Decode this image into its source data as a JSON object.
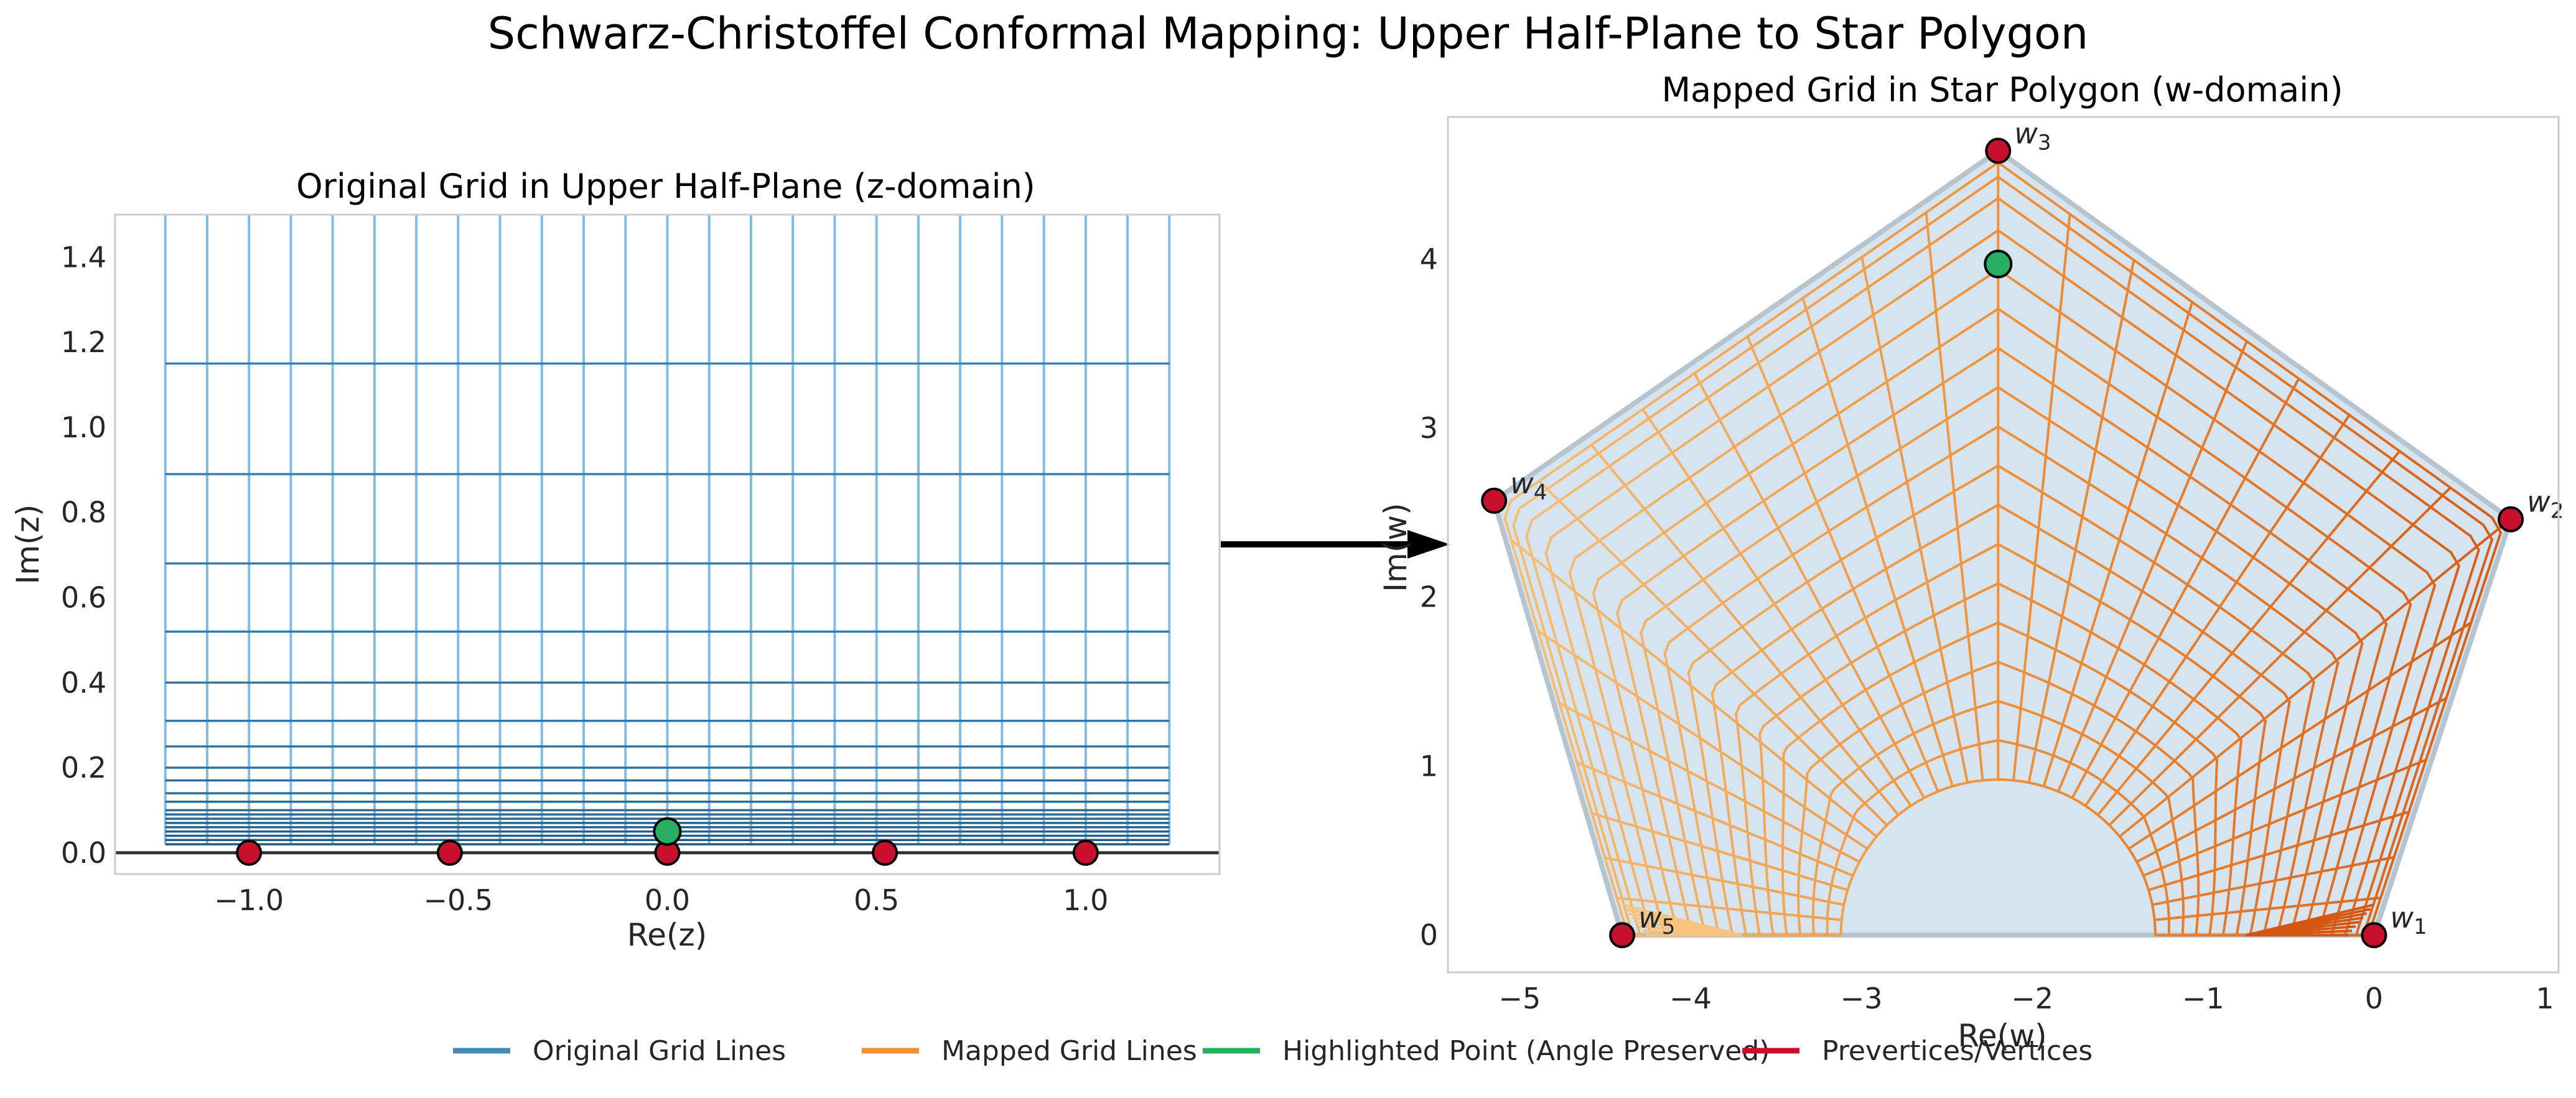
{
  "title": "Schwarz-Christoffel Conformal Mapping: Upper Half-Plane to Star Polygon",
  "colors": {
    "original": "#2c6f9e",
    "original_light": "#7fbce8",
    "mapped": "#f0913a",
    "mapped_light": "#f7c47e",
    "mapped_dark": "#d4560f",
    "highlight": "#27ae60",
    "vertex": "#c8102e",
    "polygon_fill": "#d6e4ef",
    "polygon_edge": "#b6c4d0",
    "arrow": "#000000"
  },
  "legend": [
    {
      "label": "Original Grid Lines",
      "color": "#4a89b3"
    },
    {
      "label": "Mapped Grid Lines",
      "color": "#f0913a"
    },
    {
      "label": "Highlighted Point (Angle Preserved)",
      "color": "#27ae60"
    },
    {
      "label": "Prevertices/Vertices",
      "color": "#c8102e"
    }
  ],
  "chart_data": [
    {
      "type": "line",
      "title": "Original Grid in Upper Half-Plane (z-domain)",
      "xlabel": "Re(z)",
      "ylabel": "Im(z)",
      "xlim": [
        -1.32,
        1.32
      ],
      "ylim": [
        -0.05,
        1.5
      ],
      "xticks": [
        "−1.0",
        "−0.5",
        "0.0",
        "0.5",
        "1.0"
      ],
      "xtick_values": [
        -1.0,
        -0.5,
        0.0,
        0.5,
        1.0
      ],
      "yticks": [
        "0.0",
        "0.2",
        "0.4",
        "0.6",
        "0.8",
        "1.0",
        "1.2",
        "1.4"
      ],
      "ytick_values": [
        0.0,
        0.2,
        0.4,
        0.6,
        0.8,
        1.0,
        1.2,
        1.4
      ],
      "grid": false,
      "vertical_lines_x_range": [
        -1.2,
        1.2
      ],
      "vertical_lines_count": 25,
      "vertical_lines_y_range": [
        0.02,
        1.5
      ],
      "horizontal_lines_y": [
        0.02,
        0.03,
        0.04,
        0.05,
        0.06,
        0.07,
        0.08,
        0.09,
        0.1,
        0.12,
        0.14,
        0.17,
        0.2,
        0.25,
        0.31,
        0.4,
        0.52,
        0.68,
        0.89,
        1.15
      ],
      "horizontal_lines_x_range": [
        -1.2,
        1.2
      ],
      "prevertices": [
        {
          "x": -1.0,
          "y": 0.0
        },
        {
          "x": -0.52,
          "y": 0.0
        },
        {
          "x": 0.0,
          "y": 0.0
        },
        {
          "x": 0.52,
          "y": 0.0
        },
        {
          "x": 1.0,
          "y": 0.0
        }
      ],
      "highlighted_point": {
        "x": 0.0,
        "y": 0.05
      }
    },
    {
      "type": "line",
      "title": "Mapped Grid in Star Polygon (w-domain)",
      "xlabel": "Re(w)",
      "ylabel": "Im(w)",
      "xlim": [
        -5.42,
        1.08
      ],
      "ylim": [
        -0.22,
        4.84
      ],
      "xticks": [
        "−5",
        "−4",
        "−3",
        "−2",
        "−1",
        "0",
        "1"
      ],
      "xtick_values": [
        -5,
        -4,
        -3,
        -2,
        -1,
        0,
        1
      ],
      "yticks": [
        "0",
        "1",
        "2",
        "3",
        "4"
      ],
      "ytick_values": [
        0,
        1,
        2,
        3,
        4
      ],
      "grid": false,
      "vertices": [
        {
          "label": "w",
          "sub": "1",
          "x": 0.0,
          "y": 0.0
        },
        {
          "label": "w",
          "sub": "2",
          "x": 0.8,
          "y": 2.46
        },
        {
          "label": "w",
          "sub": "3",
          "x": -2.2,
          "y": 4.64
        },
        {
          "label": "w",
          "sub": "4",
          "x": -5.15,
          "y": 2.57
        },
        {
          "label": "w",
          "sub": "5",
          "x": -4.4,
          "y": 0.0
        }
      ],
      "grid_center": {
        "x": -2.2,
        "y": 0.0
      },
      "grid_radii": [
        0.92,
        1.14,
        1.36,
        1.58,
        1.8,
        2.02,
        2.24,
        2.46,
        2.68,
        2.9,
        3.12,
        3.34,
        3.56,
        3.78,
        4.0,
        4.18,
        4.3,
        4.38
      ],
      "grid_angles_count": 33,
      "grid_angle_range_deg": [
        -8,
        188
      ],
      "highlighted_point": {
        "x": -2.2,
        "y": 3.97
      }
    }
  ]
}
